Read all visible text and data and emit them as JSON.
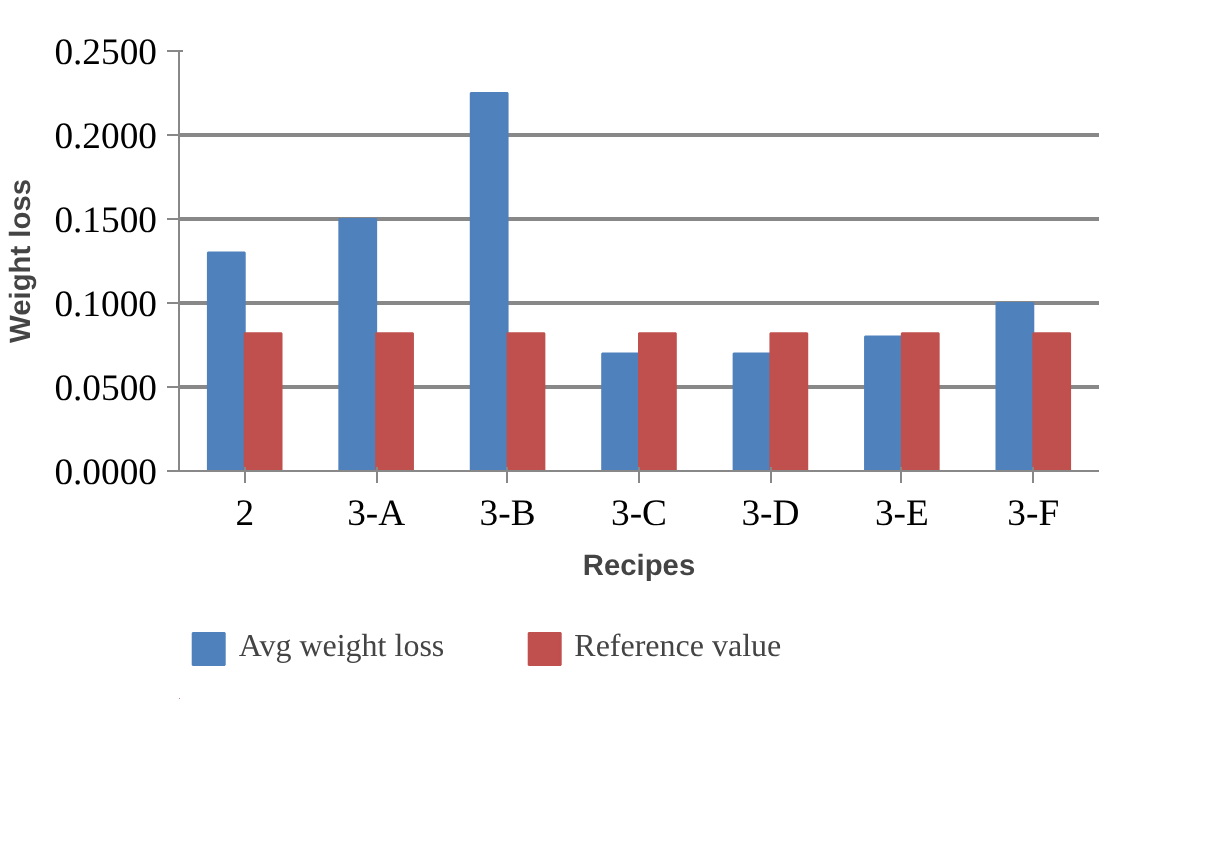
{
  "chart_data": {
    "type": "bar",
    "xlabel": "Recipes",
    "ylabel": "Weight loss",
    "categories": [
      "2",
      "3-A",
      "3-B",
      "3-C",
      "3-D",
      "3-E",
      "3-F"
    ],
    "series": [
      {
        "name": "Avg weight loss",
        "color": "#4f81bd",
        "values": [
          0.13,
          0.15,
          0.225,
          0.07,
          0.07,
          0.08,
          0.1
        ]
      },
      {
        "name": "Reference value",
        "color": "#c0504d",
        "values": [
          0.082,
          0.082,
          0.082,
          0.082,
          0.082,
          0.082,
          0.082
        ]
      }
    ],
    "ylim": [
      0,
      0.25
    ],
    "yticks": [
      {
        "value": 0,
        "label": "0.0000"
      },
      {
        "value": 0.05,
        "label": "0.0500"
      },
      {
        "value": 0.1,
        "label": "0.1000"
      },
      {
        "value": 0.15,
        "label": "0.1500"
      },
      {
        "value": 0.2,
        "label": "0.2000"
      },
      {
        "value": 0.25,
        "label": "0.2500"
      }
    ],
    "grid": "y",
    "legend": "bottom"
  }
}
